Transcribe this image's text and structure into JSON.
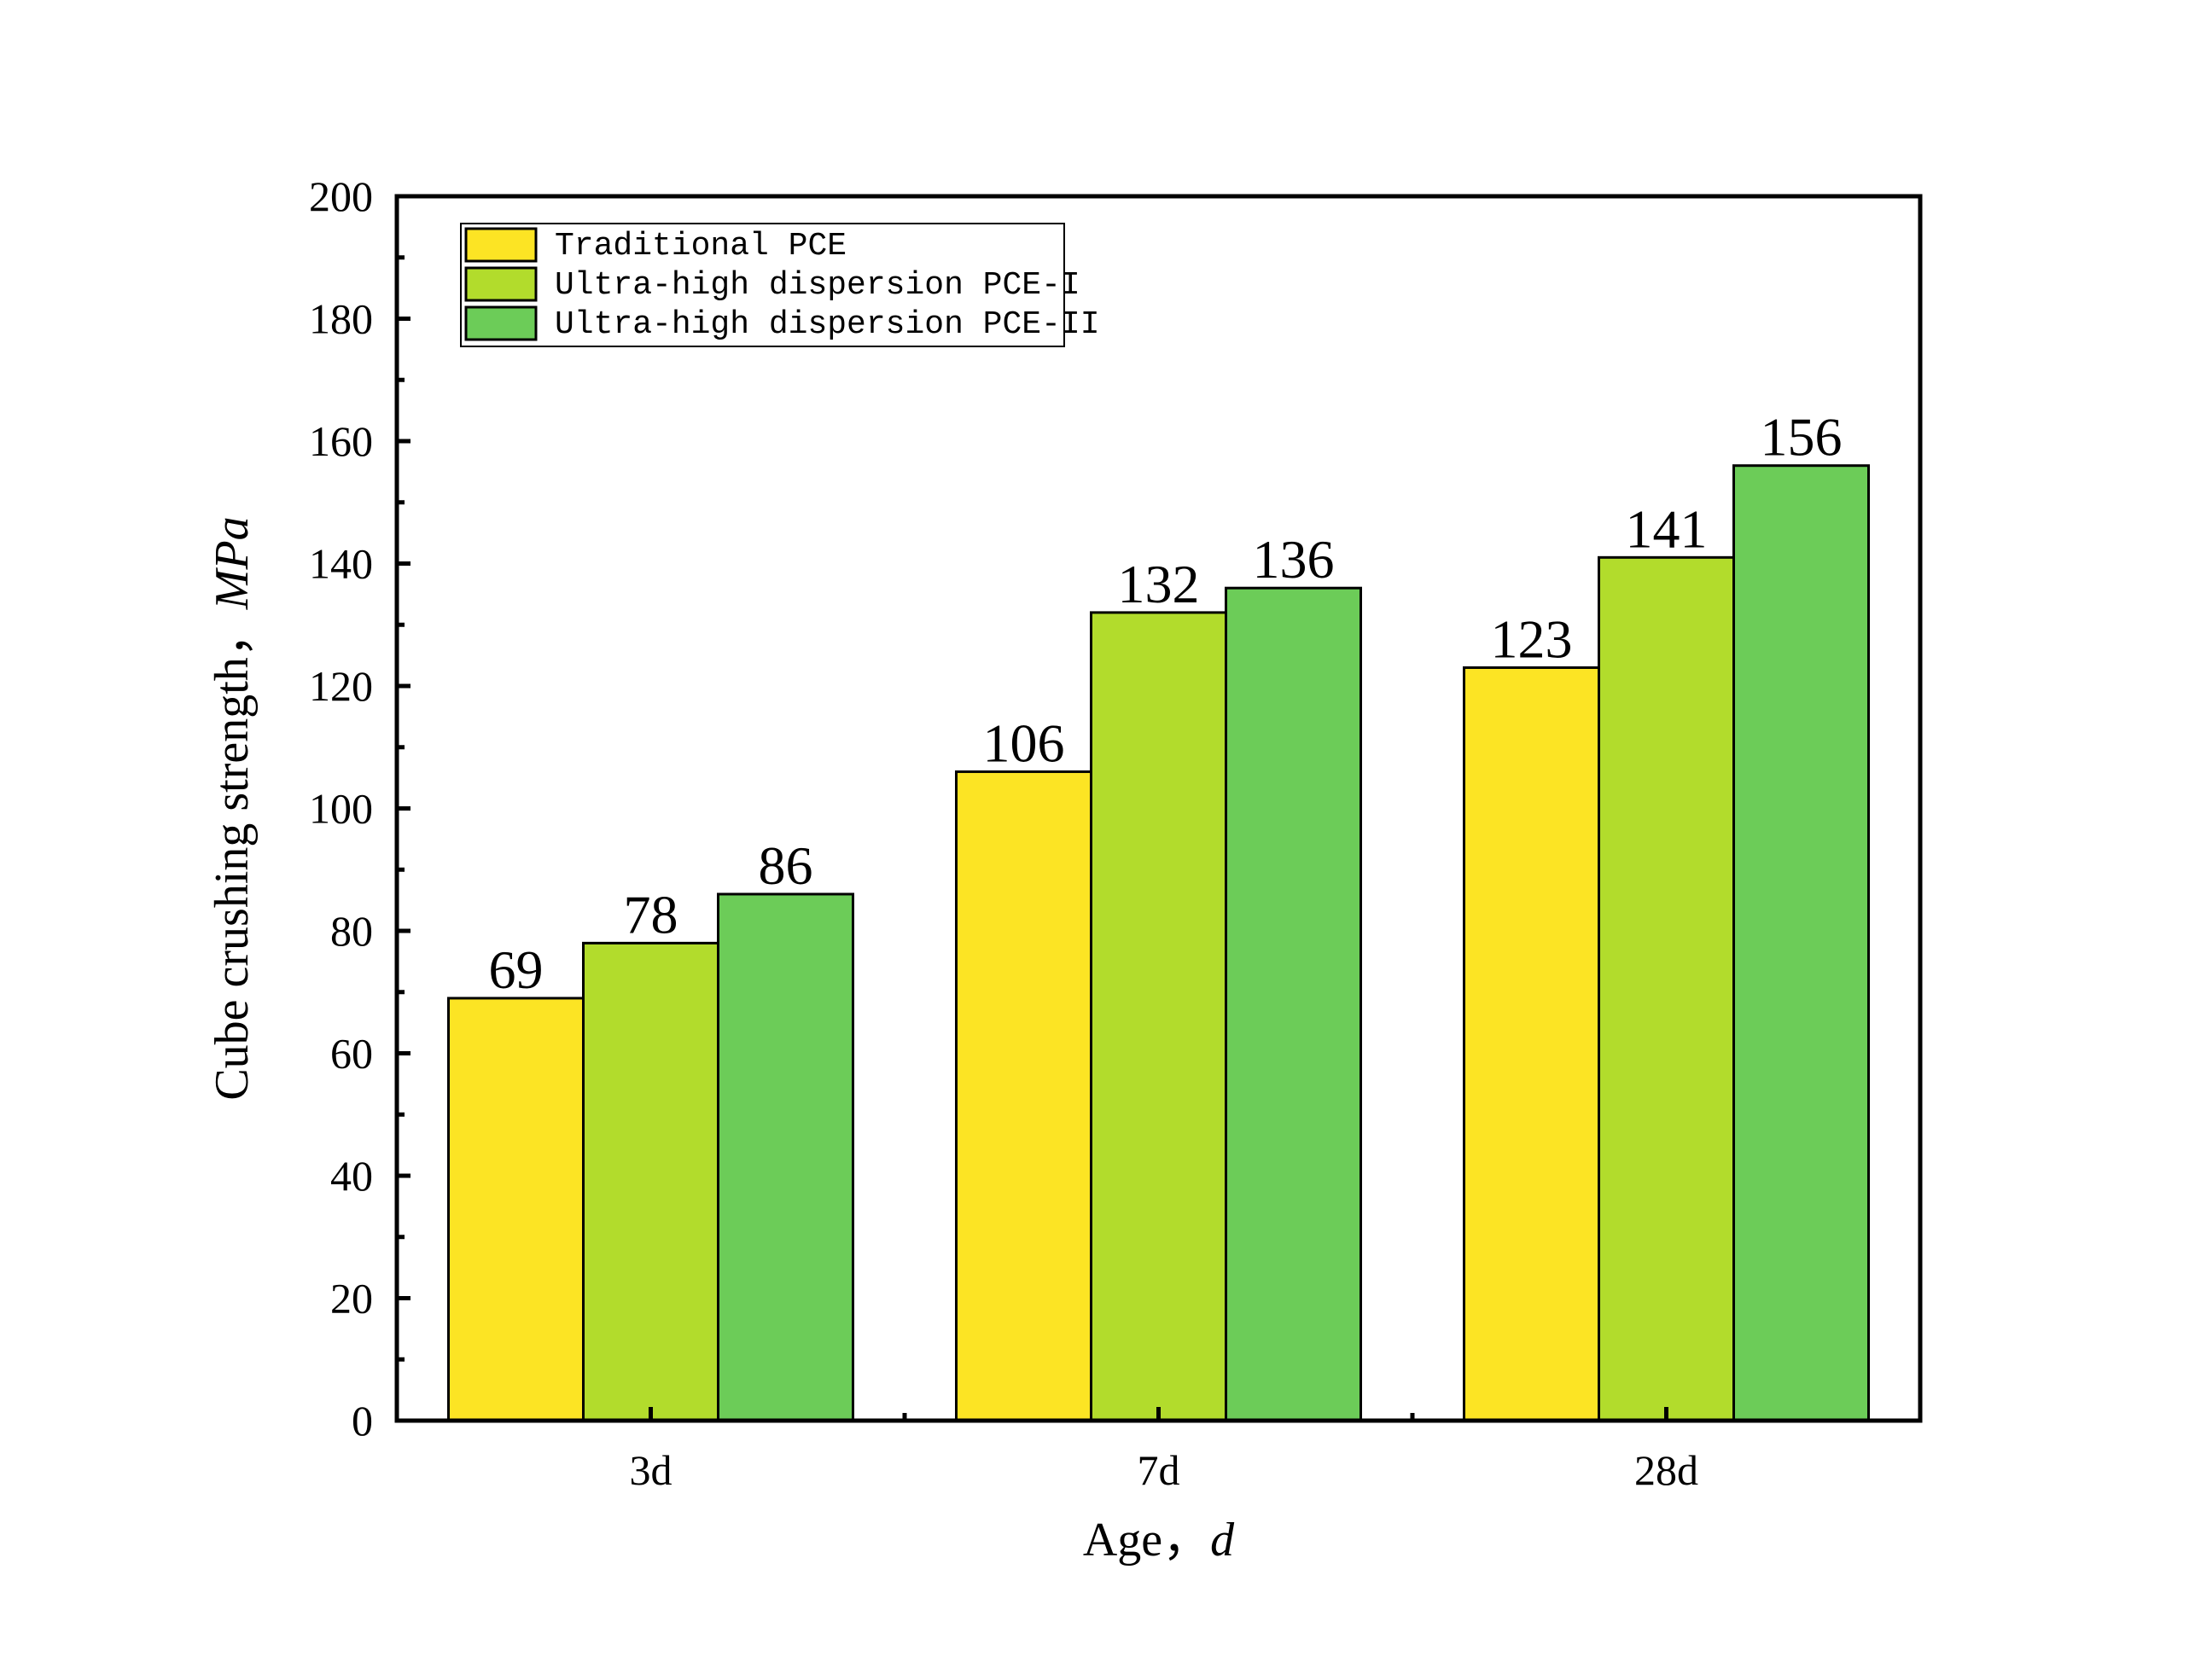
{
  "chart_data": {
    "type": "bar",
    "categories": [
      "3d",
      "7d",
      "28d"
    ],
    "series": [
      {
        "name": "Traditional PCE",
        "values": [
          69,
          106,
          123
        ],
        "color": "#FCE424"
      },
      {
        "name": "Ultra-high dispersion PCE-I",
        "values": [
          78,
          132,
          141
        ],
        "color": "#B2DC2C"
      },
      {
        "name": "Ultra-high dispersion PCE-II",
        "values": [
          86,
          136,
          156
        ],
        "color": "#6CCC58"
      }
    ],
    "xlabel": "Age，",
    "xlabel_unit": "d",
    "ylabel": "Cube crushing strength，",
    "ylabel_unit": "MPa",
    "ylim": [
      0,
      200
    ],
    "yticks": [
      0,
      20,
      40,
      60,
      80,
      100,
      120,
      140,
      160,
      180,
      200
    ],
    "grid": false,
    "legend_position": "top-left"
  }
}
